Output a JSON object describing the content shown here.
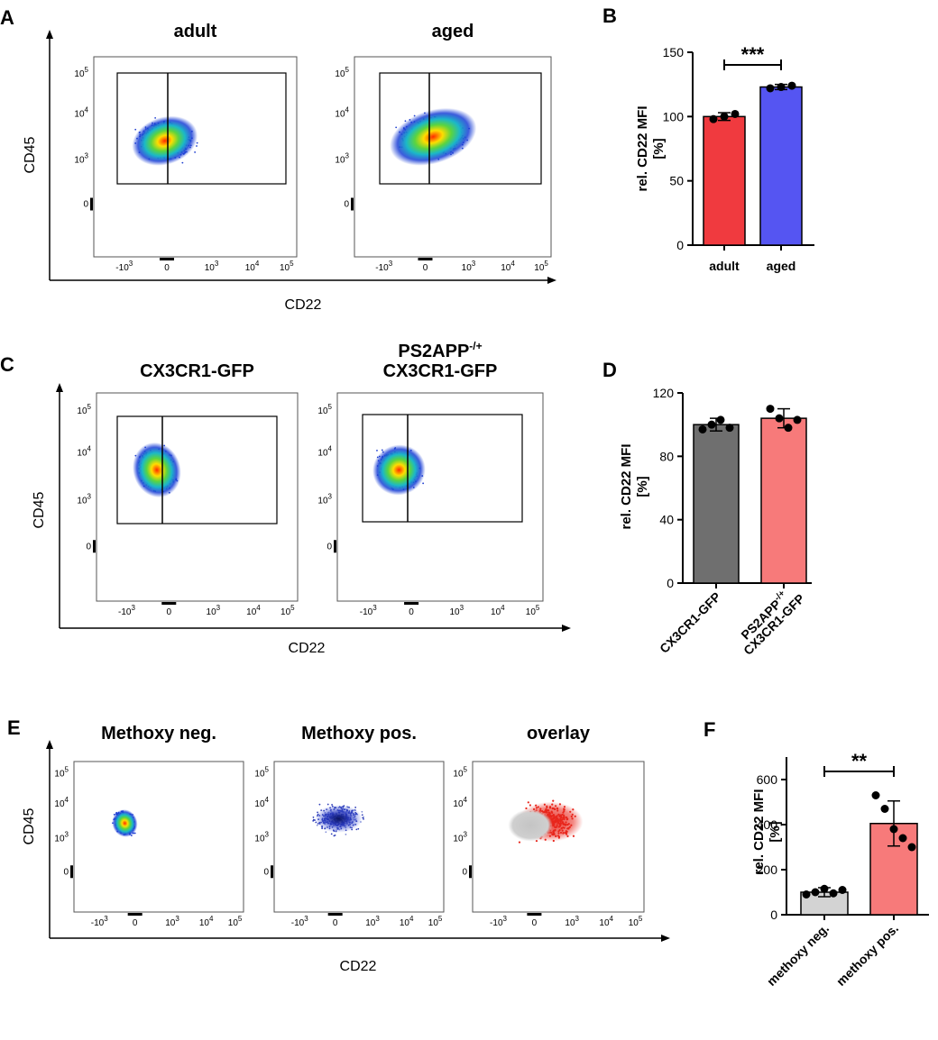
{
  "panels": {
    "A": "A",
    "B": "B",
    "C": "C",
    "D": "D",
    "E": "E",
    "F": "F"
  },
  "flow": {
    "A": {
      "xlabel": "CD22",
      "ylabel": "CD45",
      "plots": [
        {
          "title": "adult",
          "style": "heat"
        },
        {
          "title": "aged",
          "style": "heat"
        }
      ],
      "xticks": [
        "-10",
        "0",
        "10",
        "10",
        "10"
      ],
      "xticks_exp": [
        "3",
        "",
        "3",
        "4",
        "5"
      ],
      "yticks": [
        "10",
        "10",
        "10",
        "0"
      ],
      "yticks_exp": [
        "5",
        "4",
        "3",
        ""
      ]
    },
    "C": {
      "xlabel": "CD22",
      "ylabel": "CD45",
      "plots": [
        {
          "title": "CX3CR1-GFP",
          "style": "heat"
        },
        {
          "title": "PS2APP",
          "title_sup": "-/+",
          "title_line2": "CX3CR1-GFP",
          "style": "heat"
        }
      ],
      "xticks": [
        "-10",
        "0",
        "10",
        "10",
        "10"
      ],
      "xticks_exp": [
        "3",
        "",
        "3",
        "4",
        "5"
      ],
      "yticks": [
        "10",
        "10",
        "10",
        "0"
      ],
      "yticks_exp": [
        "5",
        "4",
        "3",
        ""
      ]
    },
    "E": {
      "xlabel": "CD22",
      "ylabel": "CD45",
      "plots": [
        {
          "title": "Methoxy neg.",
          "style": "heat"
        },
        {
          "title": "Methoxy pos.",
          "style": "sparse"
        },
        {
          "title": "overlay",
          "style": "overlay"
        }
      ],
      "xticks": [
        "-10",
        "0",
        "10",
        "10",
        "10"
      ],
      "xticks_exp": [
        "3",
        "",
        "3",
        "4",
        "5"
      ],
      "yticks": [
        "10",
        "10",
        "10",
        "0"
      ],
      "yticks_exp": [
        "5",
        "4",
        "3",
        ""
      ]
    }
  },
  "colors": {
    "red": "#f03a3f",
    "blue": "#5555f2",
    "gray": "#6f6f6f",
    "salmon": "#f77a7a",
    "lightgray": "#d3d3d3"
  },
  "chart_data": [
    {
      "id": "B",
      "type": "bar",
      "ylabel": "rel. CD22 MFI",
      "ylabel2": "[%]",
      "categories": [
        "adult",
        "aged"
      ],
      "values": [
        100,
        123
      ],
      "errors": [
        3,
        2
      ],
      "points": [
        [
          98,
          100,
          102
        ],
        [
          122,
          123,
          124
        ]
      ],
      "colors": [
        "#f03a3f",
        "#5555f2"
      ],
      "ylim": [
        0,
        150
      ],
      "yticks": [
        0,
        50,
        100,
        150
      ],
      "significance": "***"
    },
    {
      "id": "D",
      "type": "bar",
      "ylabel": "rel. CD22 MFI",
      "ylabel2": "[%]",
      "categories": [
        "CX3CR1-GFP",
        "PS2APP-/+ CX3CR1-GFP"
      ],
      "cat_lines": [
        [
          "CX3CR1-GFP"
        ],
        [
          "PS2APP",
          "CX3CR1-GFP"
        ]
      ],
      "cat_sup": [
        "",
        "-/+"
      ],
      "values": [
        100,
        104
      ],
      "errors": [
        4,
        6
      ],
      "points": [
        [
          97,
          100,
          103,
          98
        ],
        [
          110,
          104,
          98,
          103
        ]
      ],
      "colors": [
        "#6f6f6f",
        "#f77a7a"
      ],
      "ylim": [
        0,
        120
      ],
      "yticks": [
        0,
        40,
        80,
        120
      ]
    },
    {
      "id": "F",
      "type": "bar",
      "ylabel": "rel. CD22 MFI",
      "ylabel2": "[%]",
      "categories": [
        "methoxy neg.",
        "methoxy pos."
      ],
      "values": [
        100,
        405
      ],
      "errors": [
        20,
        100
      ],
      "points": [
        [
          90,
          100,
          115,
          95,
          110
        ],
        [
          530,
          470,
          380,
          340,
          300
        ]
      ],
      "colors": [
        "#d3d3d3",
        "#f77a7a"
      ],
      "ylim": [
        0,
        700
      ],
      "yticks": [
        0,
        200,
        400,
        600
      ],
      "significance": "**"
    }
  ]
}
